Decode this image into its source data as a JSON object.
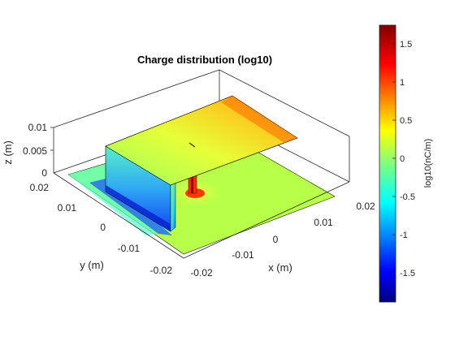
{
  "chart_data": {
    "type": "surface3d",
    "title": "Charge distribution (log10)",
    "xlabel": "x (m)",
    "ylabel": "y (m)",
    "zlabel": "z (m)",
    "x_ticks": [
      "-0.02",
      "-0.01",
      "0",
      "0.01",
      "0.02"
    ],
    "y_ticks": [
      "-0.02",
      "-0.01",
      "0",
      "0.01",
      "0.02"
    ],
    "z_ticks": [
      "0",
      "0.005",
      "0.01"
    ],
    "xlim": [
      -0.02,
      0.02
    ],
    "ylim": [
      -0.02,
      0.02
    ],
    "zlim": [
      0,
      0.01
    ],
    "colorbar": {
      "label": "log10(nC/m)",
      "range": [
        -1.9,
        1.75
      ],
      "ticks": [
        "1.5",
        "1",
        "0.5",
        "0",
        "-0.5",
        "-1",
        "-1.5"
      ],
      "colormap": "jet"
    },
    "regions": [
      {
        "name": "ground-plane",
        "approx_value": -0.1
      },
      {
        "name": "vertical-short-wall",
        "approx_value": -1.2
      },
      {
        "name": "top-patch",
        "approx_value": 0.3
      },
      {
        "name": "top-patch-far-edge",
        "approx_value": 1.0
      },
      {
        "name": "feed-post",
        "approx_value": 1.6
      },
      {
        "name": "wall-bottom-edge",
        "approx_value": -1.8
      }
    ]
  }
}
